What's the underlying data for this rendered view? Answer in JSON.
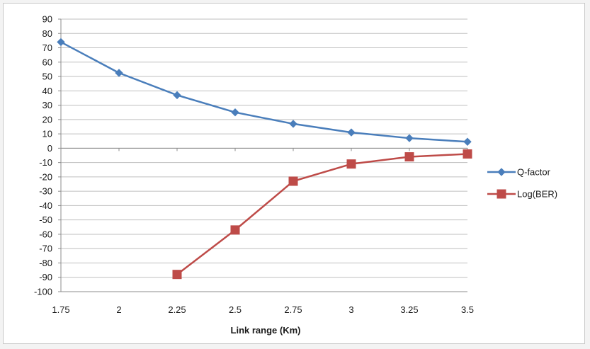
{
  "chart_data": {
    "type": "line",
    "title": "",
    "xlabel": "Link range (Km)",
    "ylabel": "",
    "x": [
      1.75,
      2,
      2.25,
      2.5,
      2.75,
      3,
      3.25,
      3.5
    ],
    "x_tick_labels": [
      "1.75",
      "2",
      "2.25",
      "2.5",
      "2.75",
      "3",
      "3.25",
      "3.5"
    ],
    "ylim": [
      -100,
      90
    ],
    "y_ticks": [
      90,
      80,
      70,
      60,
      50,
      40,
      30,
      20,
      10,
      0,
      -10,
      -20,
      -30,
      -40,
      -50,
      -60,
      -70,
      -80,
      -90,
      -100
    ],
    "grid": true,
    "legend_position": "right",
    "series": [
      {
        "name": "Q-factor",
        "color": "#4a7ebb",
        "marker": "diamond",
        "values": [
          74,
          52.5,
          37,
          25,
          17,
          11,
          7,
          4.5
        ]
      },
      {
        "name": "Log(BER)",
        "color": "#be4b48",
        "marker": "square",
        "values": [
          null,
          null,
          -88,
          -57,
          -23,
          -11,
          -6,
          -4
        ]
      }
    ]
  }
}
